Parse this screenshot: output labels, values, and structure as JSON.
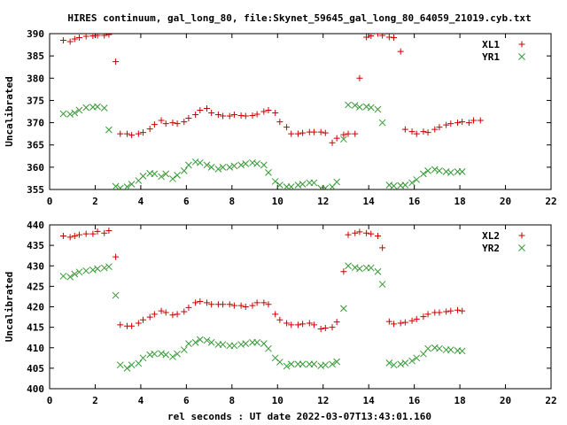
{
  "chart_data": {
    "type": "scatter",
    "title": "HIRES continuum, gal_long_80, file:Skynet_59645_gal_long_80_64059_21019.cyb.txt",
    "xlabel": "rel seconds : UT date 2022-03-07T13:43:01.160",
    "panels": [
      {
        "ylabel": "Uncalibrated",
        "xlim": [
          0,
          22
        ],
        "ylim": [
          355,
          390
        ],
        "xticks": [
          0,
          2,
          4,
          6,
          8,
          10,
          12,
          14,
          16,
          18,
          20,
          22
        ],
        "yticks": [
          355,
          360,
          365,
          370,
          375,
          380,
          385,
          390
        ],
        "legend_position": "top-right",
        "series": [
          {
            "name": "XL1",
            "marker": "plus",
            "color": "#cc0000",
            "x": [
              0.6,
              0.9,
              1.1,
              1.3,
              1.6,
              1.9,
              2.1,
              2.4,
              2.6,
              2.9,
              3.1,
              3.4,
              3.6,
              3.9,
              4.1,
              4.4,
              4.6,
              4.9,
              5.1,
              5.4,
              5.6,
              5.9,
              6.1,
              6.4,
              6.6,
              6.9,
              7.1,
              7.4,
              7.6,
              7.9,
              8.1,
              8.4,
              8.6,
              8.9,
              9.1,
              9.4,
              9.6,
              9.9,
              10.1,
              10.4,
              10.6,
              10.9,
              11.1,
              11.4,
              11.6,
              11.9,
              12.1,
              12.4,
              12.6,
              12.9,
              13.1,
              13.4,
              13.6,
              13.9,
              14.1,
              14.4,
              14.6,
              14.9,
              15.1,
              15.4,
              15.6,
              15.9,
              16.1,
              16.4,
              16.6,
              16.9,
              17.1,
              17.4,
              17.6,
              17.9,
              18.1,
              18.4,
              18.6,
              18.9,
              19.1,
              19.4,
              19.6,
              19.9,
              20.1,
              20.4,
              20.6
            ],
            "y": [
              388.5,
              388.2,
              388.8,
              389.1,
              389.4,
              389.5,
              389.6,
              389.6,
              389.8,
              383.7,
              367.5,
              367.5,
              367.2,
              367.5,
              367.8,
              368.6,
              369.6,
              370.5,
              369.8,
              370.0,
              369.8,
              370.2,
              371.0,
              371.8,
              372.8,
              373.2,
              372.2,
              371.8,
              371.5,
              371.5,
              371.8,
              371.6,
              371.5,
              371.6,
              371.9,
              372.5,
              372.8,
              372.2,
              370.2,
              369.0,
              367.5,
              367.5,
              367.7,
              367.9,
              367.9,
              367.9,
              367.7,
              365.5,
              366.5,
              367.3,
              367.5,
              367.5,
              380.0,
              389.2,
              389.5,
              390.0,
              389.6,
              389.2,
              389.1,
              386.0,
              368.5,
              368.0,
              367.5,
              368.0,
              367.8,
              368.5,
              369.0,
              369.5,
              369.8,
              370.0,
              370.2,
              370.0,
              370.5,
              370.5,
              null,
              null,
              null,
              null,
              null,
              null,
              null
            ]
          },
          {
            "name": "YR1",
            "marker": "x",
            "color": "#339933",
            "x": [
              0.6,
              0.9,
              1.1,
              1.3,
              1.6,
              1.9,
              2.1,
              2.4,
              2.6,
              2.9,
              3.1,
              3.4,
              3.6,
              3.9,
              4.1,
              4.4,
              4.6,
              4.9,
              5.1,
              5.4,
              5.6,
              5.9,
              6.1,
              6.4,
              6.6,
              6.9,
              7.1,
              7.4,
              7.6,
              7.9,
              8.1,
              8.4,
              8.6,
              8.9,
              9.1,
              9.4,
              9.6,
              9.9,
              10.1,
              10.4,
              10.6,
              10.9,
              11.1,
              11.4,
              11.6,
              11.9,
              12.1,
              12.4,
              12.6,
              12.9,
              13.1,
              13.4,
              13.6,
              13.9,
              14.1,
              14.4,
              14.6,
              14.9,
              15.1,
              15.4,
              15.6,
              15.9,
              16.1,
              16.4,
              16.6,
              16.9,
              17.1,
              17.4,
              17.6,
              17.9,
              18.1,
              18.4,
              18.6,
              18.9,
              19.1,
              19.4,
              19.6,
              19.9,
              20.1,
              20.4,
              20.6
            ],
            "y": [
              372.0,
              371.9,
              372.2,
              372.8,
              373.4,
              373.5,
              373.6,
              373.3,
              368.4,
              355.7,
              355.3,
              355.6,
              356.2,
              357.0,
              358.0,
              358.6,
              358.5,
              357.9,
              358.5,
              357.4,
              358.2,
              359.2,
              360.5,
              361.2,
              361.0,
              360.5,
              360.0,
              359.6,
              360.0,
              360.0,
              360.3,
              360.5,
              360.8,
              361.0,
              360.8,
              360.5,
              358.8,
              356.8,
              356.0,
              355.6,
              355.6,
              356.0,
              356.2,
              356.5,
              356.5,
              355.3,
              355.3,
              355.6,
              356.7,
              366.3,
              374.0,
              373.9,
              373.5,
              373.6,
              373.4,
              373.0,
              370.0,
              356.0,
              355.8,
              355.9,
              356.0,
              356.5,
              357.2,
              358.5,
              359.2,
              359.5,
              359.2,
              359.0,
              358.8,
              359.0,
              359.0,
              null,
              null,
              null,
              null,
              null,
              null,
              null,
              null,
              null,
              null
            ]
          }
        ]
      },
      {
        "ylabel": "Uncalibrated",
        "xlim": [
          0,
          22
        ],
        "ylim": [
          400,
          440
        ],
        "xticks": [
          0,
          2,
          4,
          6,
          8,
          10,
          12,
          14,
          16,
          18,
          20,
          22
        ],
        "yticks": [
          400,
          405,
          410,
          415,
          420,
          425,
          430,
          435,
          440
        ],
        "legend_position": "top-right",
        "series": [
          {
            "name": "XL2",
            "marker": "plus",
            "color": "#cc0000",
            "x": [
              0.6,
              0.9,
              1.1,
              1.3,
              1.6,
              1.9,
              2.1,
              2.4,
              2.6,
              2.9,
              3.1,
              3.4,
              3.6,
              3.9,
              4.1,
              4.4,
              4.6,
              4.9,
              5.1,
              5.4,
              5.6,
              5.9,
              6.1,
              6.4,
              6.6,
              6.9,
              7.1,
              7.4,
              7.6,
              7.9,
              8.1,
              8.4,
              8.6,
              8.9,
              9.1,
              9.4,
              9.6,
              9.9,
              10.1,
              10.4,
              10.6,
              10.9,
              11.1,
              11.4,
              11.6,
              11.9,
              12.1,
              12.4,
              12.6,
              12.9,
              13.1,
              13.4,
              13.6,
              13.9,
              14.1,
              14.4,
              14.6,
              14.9,
              15.1,
              15.4,
              15.6,
              15.9,
              16.1,
              16.4,
              16.6,
              16.9,
              17.1,
              17.4,
              17.6,
              17.9,
              18.1,
              18.4,
              18.6,
              18.9,
              19.1,
              19.4,
              19.6,
              19.9,
              20.1,
              20.4,
              20.6
            ],
            "y": [
              437.3,
              437.0,
              437.3,
              437.6,
              437.8,
              437.8,
              438.4,
              438.0,
              438.6,
              432.2,
              415.6,
              415.3,
              415.3,
              416.0,
              416.8,
              417.5,
              418.2,
              419.0,
              418.6,
              418.0,
              418.2,
              418.8,
              419.8,
              421.0,
              421.3,
              421.0,
              420.6,
              420.6,
              420.6,
              420.6,
              420.3,
              420.3,
              420.0,
              420.3,
              421.0,
              421.0,
              420.6,
              418.2,
              416.8,
              416.0,
              415.6,
              415.6,
              415.8,
              416.0,
              415.6,
              414.6,
              414.8,
              415.0,
              416.3,
              428.6,
              437.6,
              438.0,
              438.3,
              438.0,
              437.8,
              437.3,
              434.4,
              416.4,
              415.8,
              416.0,
              416.2,
              416.6,
              417.0,
              417.6,
              418.2,
              418.6,
              418.6,
              418.8,
              419.0,
              419.2,
              419.0,
              null,
              null,
              null,
              null,
              null,
              null,
              null,
              null,
              null,
              null
            ]
          },
          {
            "name": "YR2",
            "marker": "x",
            "color": "#339933",
            "x": [
              0.6,
              0.9,
              1.1,
              1.3,
              1.6,
              1.9,
              2.1,
              2.4,
              2.6,
              2.9,
              3.1,
              3.4,
              3.6,
              3.9,
              4.1,
              4.4,
              4.6,
              4.9,
              5.1,
              5.4,
              5.6,
              5.9,
              6.1,
              6.4,
              6.6,
              6.9,
              7.1,
              7.4,
              7.6,
              7.9,
              8.1,
              8.4,
              8.6,
              8.9,
              9.1,
              9.4,
              9.6,
              9.9,
              10.1,
              10.4,
              10.6,
              10.9,
              11.1,
              11.4,
              11.6,
              11.9,
              12.1,
              12.4,
              12.6,
              12.9,
              13.1,
              13.4,
              13.6,
              13.9,
              14.1,
              14.4,
              14.6,
              14.9,
              15.1,
              15.4,
              15.6,
              15.9,
              16.1,
              16.4,
              16.6,
              16.9,
              17.1,
              17.4,
              17.6,
              17.9,
              18.1,
              18.4,
              18.6,
              18.9,
              19.1,
              19.4,
              19.6,
              19.9,
              20.1,
              20.4,
              20.6
            ],
            "y": [
              427.5,
              427.3,
              428.0,
              428.5,
              428.8,
              429.0,
              429.3,
              429.5,
              429.8,
              422.8,
              405.8,
              405.0,
              405.8,
              406.2,
              407.5,
              408.3,
              408.5,
              408.6,
              408.3,
              407.8,
              408.5,
              409.5,
              411.0,
              411.3,
              412.0,
              411.8,
              411.3,
              410.8,
              410.8,
              410.5,
              410.5,
              410.8,
              411.0,
              411.3,
              411.3,
              411.0,
              409.8,
              407.5,
              406.5,
              405.5,
              406.0,
              406.0,
              406.0,
              406.0,
              406.0,
              405.6,
              405.8,
              406.0,
              406.6,
              419.6,
              430.0,
              429.6,
              429.3,
              429.5,
              429.5,
              428.6,
              425.5,
              406.3,
              405.8,
              406.0,
              406.3,
              406.8,
              407.5,
              408.5,
              409.8,
              410.0,
              409.8,
              409.5,
              409.5,
              409.3,
              409.2,
              null,
              null,
              null,
              null,
              null,
              null,
              null,
              null,
              null,
              null
            ]
          }
        ]
      }
    ]
  }
}
